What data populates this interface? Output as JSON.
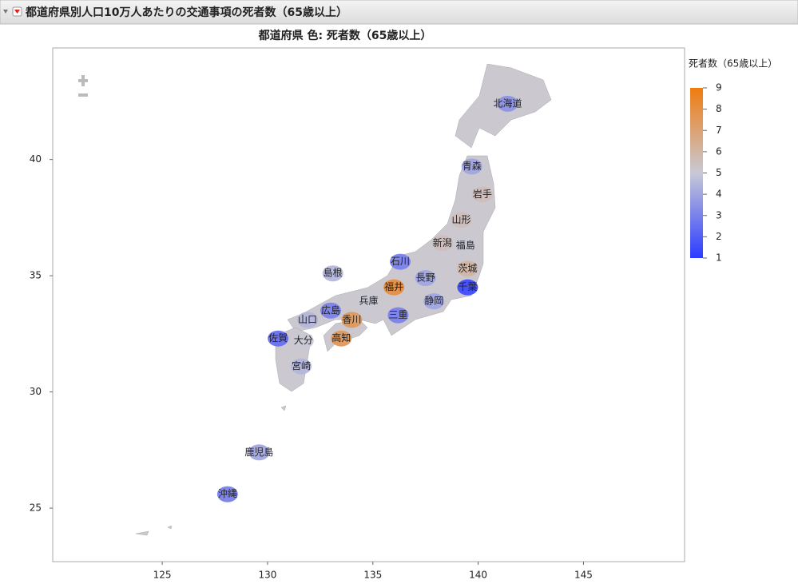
{
  "header": {
    "title": "都道府県別人口10万人あたりの交通事項の死者数（65歳以上）"
  },
  "chart_data": {
    "type": "choropleth",
    "title": "都道府県 色: 死者数（65歳以上）",
    "xlim": [
      119.8,
      149.8
    ],
    "xticks": [
      125,
      130,
      135,
      140,
      145
    ],
    "ylim": [
      22.7,
      44.8
    ],
    "yticks": [
      25,
      30,
      35,
      40
    ],
    "legend_title": "死者数（65歳以上）",
    "clim": [
      1,
      9
    ],
    "cticks": [
      1,
      2,
      3,
      4,
      5,
      6,
      7,
      8,
      9
    ],
    "colors": [
      "#2b3bff",
      "#c8c9d6",
      "#ef7c10"
    ],
    "regions": [
      {
        "name": "北海道",
        "lon": 141.4,
        "lat": 42.4,
        "value": 3.5
      },
      {
        "name": "青森",
        "lon": 139.7,
        "lat": 39.7,
        "value": 4
      },
      {
        "name": "岩手",
        "lon": 140.2,
        "lat": 38.5,
        "value": 5.5
      },
      {
        "name": "山形",
        "lon": 139.2,
        "lat": 37.4,
        "value": 5.5
      },
      {
        "name": "新潟",
        "lon": 138.3,
        "lat": 36.4,
        "value": 5.5
      },
      {
        "name": "福島",
        "lon": 139.4,
        "lat": 36.3,
        "value": 5
      },
      {
        "name": "石川",
        "lon": 136.3,
        "lat": 35.6,
        "value": 3
      },
      {
        "name": "茨城",
        "lon": 139.5,
        "lat": 35.3,
        "value": 6
      },
      {
        "name": "島根",
        "lon": 133.1,
        "lat": 35.1,
        "value": 4.5
      },
      {
        "name": "長野",
        "lon": 137.5,
        "lat": 34.9,
        "value": 4
      },
      {
        "name": "福井",
        "lon": 136.0,
        "lat": 34.5,
        "value": 8
      },
      {
        "name": "千葉",
        "lon": 139.5,
        "lat": 34.5,
        "value": 1.5
      },
      {
        "name": "兵庫",
        "lon": 134.8,
        "lat": 33.9,
        "value": 5
      },
      {
        "name": "静岡",
        "lon": 137.9,
        "lat": 33.9,
        "value": 4
      },
      {
        "name": "広島",
        "lon": 133.0,
        "lat": 33.5,
        "value": 3
      },
      {
        "name": "三重",
        "lon": 136.2,
        "lat": 33.3,
        "value": 3
      },
      {
        "name": "山口",
        "lon": 131.9,
        "lat": 33.1,
        "value": 4.5
      },
      {
        "name": "香川",
        "lon": 134.0,
        "lat": 33.1,
        "value": 7.5
      },
      {
        "name": "高知",
        "lon": 133.5,
        "lat": 32.3,
        "value": 7.5
      },
      {
        "name": "佐賀",
        "lon": 130.5,
        "lat": 32.3,
        "value": 2.5
      },
      {
        "name": "大分",
        "lon": 131.7,
        "lat": 32.2,
        "value": 5
      },
      {
        "name": "宮崎",
        "lon": 131.6,
        "lat": 31.1,
        "value": 4.5
      },
      {
        "name": "鹿児島",
        "lon": 129.6,
        "lat": 27.4,
        "value": 4
      },
      {
        "name": "沖縄",
        "lon": 128.1,
        "lat": 25.6,
        "value": 3
      }
    ]
  }
}
